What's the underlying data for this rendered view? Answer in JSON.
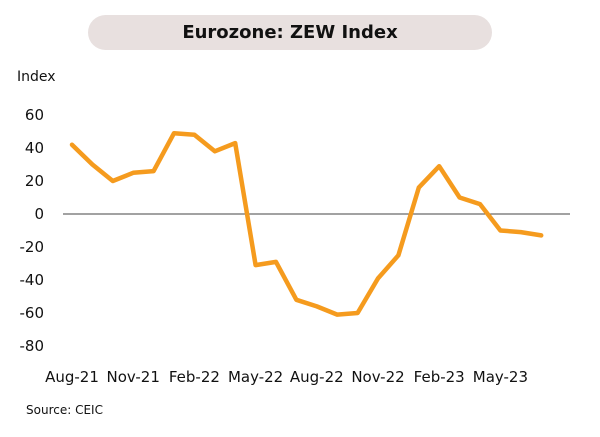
{
  "chart_data": {
    "type": "line",
    "title": "Eurozone: ZEW Index",
    "ylabel": "Index",
    "xlabel": "",
    "source": "Source: CEIC",
    "ylim": [
      -80,
      60
    ],
    "yticks": [
      "60",
      "40",
      "20",
      "0",
      "-20",
      "-40",
      "-60",
      "-80"
    ],
    "yvalues": [
      60,
      40,
      20,
      0,
      -20,
      -40,
      -60,
      -80
    ],
    "xticks": [
      "Aug-21",
      "Nov-21",
      "Feb-22",
      "May-22",
      "Aug-22",
      "Nov-22",
      "Feb-23",
      "May-23"
    ],
    "xtick_index": [
      0,
      3,
      6,
      9,
      12,
      15,
      18,
      21
    ],
    "line_color": "#f59b1e",
    "zero_line": true,
    "grid": false,
    "series": [
      {
        "x": [
          "Aug-21",
          "Sep-21",
          "Oct-21",
          "Nov-21",
          "Dec-21",
          "Jan-22",
          "Feb-22",
          "Mar-22",
          "Apr-22",
          "May-22",
          "Jun-22",
          "Jul-22",
          "Aug-22",
          "Sep-22",
          "Oct-22",
          "Nov-22",
          "Dec-22",
          "Jan-23",
          "Feb-23",
          "Mar-23",
          "Apr-23",
          "May-23",
          "Jun-23",
          "Jul-23",
          "Aug-23"
        ],
        "values": [
          42,
          30,
          20,
          25,
          26,
          49,
          48,
          38,
          43,
          -31,
          -29,
          -52,
          -56,
          -61,
          -60,
          -39,
          -25,
          16,
          29,
          10,
          6,
          -10,
          -11,
          -13,
          null
        ]
      }
    ]
  }
}
